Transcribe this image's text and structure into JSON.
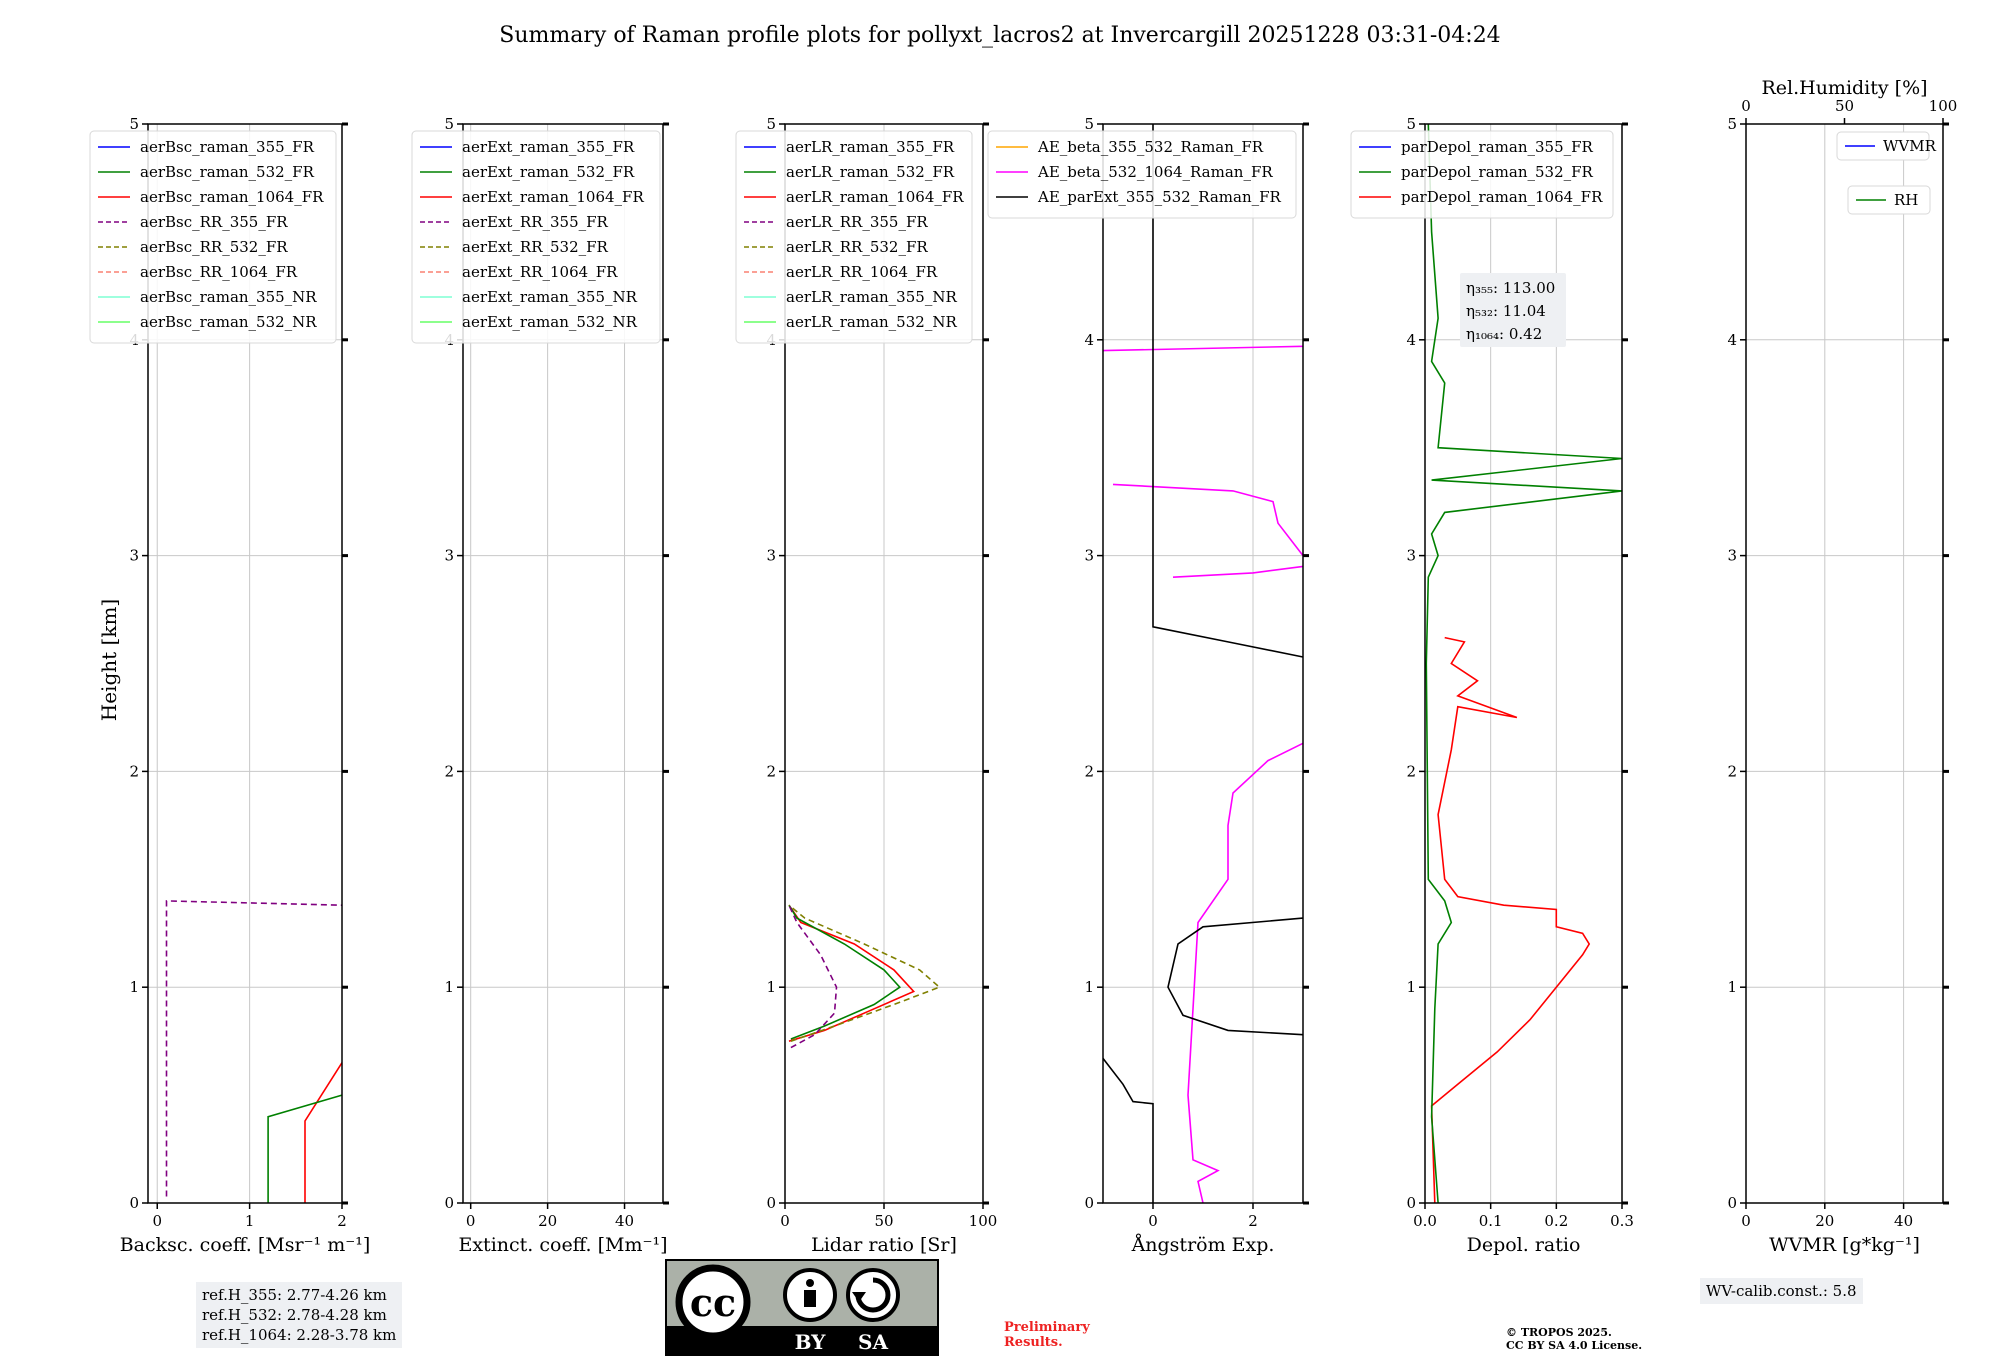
{
  "title": "Summary of Raman profile plots for pollyxt_lacros2 at Invercargill 20251228 03:31-04:24",
  "height_label": "Height [km]",
  "colors": {
    "c355": "#0000ff",
    "c532": "#008000",
    "c1064": "#ff0000",
    "rr355": "#800080",
    "rr532": "#808000",
    "rr1064": "#fa8072",
    "nr355": "#7fffd4",
    "nr532": "#66ff66",
    "ae1": "#ffa500",
    "ae2": "#ff00ff",
    "ae3": "#000000"
  },
  "chart_data": [
    {
      "type": "line",
      "id": "bsc",
      "xlabel": "Backsc. coeff. [Msr⁻¹ m⁻¹]",
      "xlim": [
        -0.1,
        2
      ],
      "ylim": [
        0,
        5
      ],
      "xticks": [
        "0",
        "1",
        "2"
      ],
      "xtick_values": [
        0,
        1,
        2
      ],
      "yticks": [
        "0",
        "1",
        "2",
        "3",
        "4",
        "5"
      ],
      "legend": [
        "aerBsc_raman_355_FR",
        "aerBsc_raman_532_FR",
        "aerBsc_raman_1064_FR",
        "aerBsc_RR_355_FR",
        "aerBsc_RR_532_FR",
        "aerBsc_RR_1064_FR",
        "aerBsc_raman_355_NR",
        "aerBsc_raman_532_NR"
      ],
      "series": [
        {
          "name": "aerBsc_RR_355_FR",
          "color": "rr355",
          "dash": true,
          "points": [
            [
              0.1,
              0.03
            ],
            [
              0.1,
              1.4
            ],
            [
              2,
              1.38
            ]
          ]
        },
        {
          "name": "aerBsc_raman_1064_FR",
          "color": "c1064",
          "points": [
            [
              1.6,
              0
            ],
            [
              1.6,
              0.38
            ],
            [
              2,
              0.65
            ]
          ]
        },
        {
          "name": "aerBsc_raman_532_FR",
          "color": "c532",
          "points": [
            [
              1.2,
              0
            ],
            [
              1.2,
              0.4
            ],
            [
              2,
              0.5
            ]
          ]
        }
      ]
    },
    {
      "type": "line",
      "id": "ext",
      "xlabel": "Extinct. coeff. [Mm⁻¹]",
      "xlim": [
        -2,
        50
      ],
      "ylim": [
        0,
        5
      ],
      "xticks": [
        "0",
        "20",
        "40"
      ],
      "xtick_values": [
        0,
        20,
        40
      ],
      "yticks": [
        "0",
        "1",
        "2",
        "3",
        "4",
        "5"
      ],
      "legend": [
        "aerExt_raman_355_FR",
        "aerExt_raman_532_FR",
        "aerExt_raman_1064_FR",
        "aerExt_RR_355_FR",
        "aerExt_RR_532_FR",
        "aerExt_RR_1064_FR",
        "aerExt_raman_355_NR",
        "aerExt_raman_532_NR"
      ],
      "series": []
    },
    {
      "type": "line",
      "id": "lr",
      "xlabel": "Lidar ratio [Sr]",
      "xlim": [
        0,
        100
      ],
      "ylim": [
        0,
        5
      ],
      "xticks": [
        "0",
        "50",
        "100"
      ],
      "xtick_values": [
        0,
        50,
        100
      ],
      "yticks": [
        "0",
        "1",
        "2",
        "3",
        "4",
        "5"
      ],
      "legend": [
        "aerLR_raman_355_FR",
        "aerLR_raman_532_FR",
        "aerLR_raman_1064_FR",
        "aerLR_RR_355_FR",
        "aerLR_RR_532_FR",
        "aerLR_RR_1064_FR",
        "aerLR_raman_355_NR",
        "aerLR_raman_532_NR"
      ],
      "series": [
        {
          "name": "aerLR_raman_1064_FR",
          "color": "c1064",
          "points": [
            [
              2,
              0.75
            ],
            [
              20,
              0.8
            ],
            [
              45,
              0.9
            ],
            [
              65,
              0.98
            ],
            [
              55,
              1.08
            ],
            [
              35,
              1.2
            ],
            [
              8,
              1.3
            ],
            [
              2,
              1.38
            ]
          ]
        },
        {
          "name": "aerLR_raman_532_FR",
          "color": "c532",
          "points": [
            [
              3,
              0.76
            ],
            [
              20,
              0.82
            ],
            [
              45,
              0.92
            ],
            [
              58,
              1.0
            ],
            [
              50,
              1.08
            ],
            [
              30,
              1.2
            ],
            [
              6,
              1.32
            ],
            [
              2,
              1.38
            ]
          ]
        },
        {
          "name": "aerLR_RR_532_FR",
          "color": "rr532",
          "dash": true,
          "points": [
            [
              3,
              0.75
            ],
            [
              25,
              0.82
            ],
            [
              55,
              0.92
            ],
            [
              78,
              1.0
            ],
            [
              68,
              1.08
            ],
            [
              40,
              1.2
            ],
            [
              10,
              1.32
            ],
            [
              2,
              1.38
            ]
          ]
        },
        {
          "name": "aerLR_RR_355_FR",
          "color": "rr355",
          "dash": true,
          "points": [
            [
              3,
              0.72
            ],
            [
              15,
              0.78
            ],
            [
              25,
              0.88
            ],
            [
              26,
              1.0
            ],
            [
              18,
              1.15
            ],
            [
              6,
              1.3
            ],
            [
              2,
              1.38
            ]
          ]
        }
      ]
    },
    {
      "type": "line",
      "id": "ae",
      "xlabel": "Ångström Exp.",
      "xlim": [
        -1,
        3
      ],
      "ylim": [
        0,
        5
      ],
      "xticks": [
        "0",
        "2"
      ],
      "xtick_values": [
        0,
        2
      ],
      "yticks": [
        "0",
        "1",
        "2",
        "3",
        "4",
        "5"
      ],
      "legend": [
        "AE_beta_355_532_Raman_FR",
        "AE_beta_532_1064_Raman_FR",
        "AE_parExt_355_532_Raman_FR"
      ],
      "series": [
        {
          "name": "AE_beta_532_1064_Raman_FR",
          "color": "ae2",
          "points": [
            [
              1.0,
              0
            ],
            [
              0.9,
              0.1
            ],
            [
              1.3,
              0.15
            ],
            [
              0.8,
              0.2
            ],
            [
              0.7,
              0.5
            ],
            [
              0.8,
              0.9
            ],
            [
              0.9,
              1.3
            ],
            [
              1.5,
              1.5
            ],
            [
              1.5,
              1.75
            ],
            [
              1.6,
              1.9
            ],
            [
              2.3,
              2.05
            ],
            [
              3,
              2.13
            ]
          ]
        },
        {
          "name": "AE_beta_532_1064_Raman_FR",
          "color": "ae2",
          "points": [
            [
              0.4,
              2.9
            ],
            [
              2.0,
              2.92
            ],
            [
              3,
              2.95
            ]
          ]
        },
        {
          "name": "AE_beta_532_1064_Raman_FR",
          "color": "ae2",
          "points": [
            [
              -0.8,
              3.33
            ],
            [
              1.6,
              3.3
            ],
            [
              2.4,
              3.25
            ],
            [
              2.5,
              3.15
            ],
            [
              3,
              3.0
            ]
          ]
        },
        {
          "name": "AE_beta_532_1064_Raman_FR",
          "color": "ae2",
          "points": [
            [
              -1,
              3.95
            ],
            [
              3,
              3.97
            ]
          ]
        },
        {
          "name": "AE_parExt_355_532_Raman_FR",
          "color": "ae3",
          "points": [
            [
              -1,
              0.67
            ],
            [
              -0.6,
              0.55
            ],
            [
              -0.4,
              0.47
            ],
            [
              0,
              0.46
            ],
            [
              0,
              0
            ]
          ]
        },
        {
          "name": "AE_parExt_355_532_Raman_FR",
          "color": "ae3",
          "points": [
            [
              3,
              0.78
            ],
            [
              1.5,
              0.8
            ],
            [
              0.6,
              0.87
            ],
            [
              0.3,
              1.0
            ],
            [
              0.5,
              1.2
            ],
            [
              1.0,
              1.28
            ],
            [
              3,
              1.32
            ]
          ]
        },
        {
          "name": "AE_parExt_355_532_Raman_FR",
          "color": "ae3",
          "points": [
            [
              3,
              2.53
            ],
            [
              1.5,
              2.6
            ],
            [
              0,
              2.67
            ],
            [
              0,
              5
            ]
          ]
        }
      ]
    },
    {
      "type": "line",
      "id": "depol",
      "xlabel": "Depol. ratio",
      "xlim": [
        0,
        0.3
      ],
      "ylim": [
        0,
        5
      ],
      "xticks": [
        "0.0",
        "0.1",
        "0.2",
        "0.3"
      ],
      "xtick_values": [
        0,
        0.1,
        0.2,
        0.3
      ],
      "yticks": [
        "0",
        "1",
        "2",
        "3",
        "4",
        "5"
      ],
      "legend": [
        "parDepol_raman_355_FR",
        "parDepol_raman_532_FR",
        "parDepol_raman_1064_FR"
      ],
      "annotation": [
        "η₃₅₅: 113.00",
        "η₅₃₂: 11.04",
        "η₁₀₆₄: 0.42"
      ],
      "series": [
        {
          "name": "parDepol_raman_1064_FR",
          "color": "c1064",
          "points": [
            [
              0.015,
              0
            ],
            [
              0.01,
              0.45
            ],
            [
              0.05,
              0.55
            ],
            [
              0.11,
              0.7
            ],
            [
              0.16,
              0.85
            ],
            [
              0.2,
              1.0
            ],
            [
              0.24,
              1.15
            ],
            [
              0.25,
              1.2
            ],
            [
              0.24,
              1.25
            ],
            [
              0.2,
              1.28
            ],
            [
              0.2,
              1.36
            ],
            [
              0.12,
              1.38
            ],
            [
              0.05,
              1.42
            ],
            [
              0.03,
              1.5
            ],
            [
              0.02,
              1.8
            ],
            [
              0.04,
              2.1
            ],
            [
              0.05,
              2.3
            ],
            [
              0.14,
              2.25
            ],
            [
              0.05,
              2.35
            ],
            [
              0.08,
              2.42
            ],
            [
              0.04,
              2.5
            ],
            [
              0.06,
              2.6
            ],
            [
              0.03,
              2.62
            ]
          ]
        },
        {
          "name": "parDepol_raman_532_FR",
          "color": "c532",
          "points": [
            [
              0.02,
              0
            ],
            [
              0.01,
              0.4
            ],
            [
              0.015,
              0.9
            ],
            [
              0.02,
              1.2
            ],
            [
              0.04,
              1.3
            ],
            [
              0.03,
              1.4
            ],
            [
              0.005,
              1.5
            ],
            [
              0.002,
              2.5
            ],
            [
              0.005,
              2.9
            ],
            [
              0.02,
              3.0
            ],
            [
              0.01,
              3.1
            ],
            [
              0.03,
              3.2
            ],
            [
              0.3,
              3.3
            ],
            [
              0.01,
              3.35
            ],
            [
              0.3,
              3.45
            ],
            [
              0.02,
              3.5
            ],
            [
              0.03,
              3.8
            ],
            [
              0.01,
              3.9
            ],
            [
              0.02,
              4.1
            ],
            [
              0.01,
              4.5
            ],
            [
              0.005,
              5
            ]
          ]
        }
      ]
    },
    {
      "type": "line",
      "id": "wv",
      "xlabel": "WVMR [g*kg⁻¹]",
      "top_label": "Rel.Humidity [%]",
      "top_ticks": [
        "0",
        "50",
        "100"
      ],
      "xlim": [
        0,
        50
      ],
      "ylim": [
        0,
        5
      ],
      "xticks": [
        "0",
        "20",
        "40"
      ],
      "xtick_values": [
        0,
        20,
        40
      ],
      "yticks": [
        "0",
        "1",
        "2",
        "3",
        "4",
        "5"
      ],
      "legend": [
        "WVMR",
        "RH"
      ],
      "series": []
    }
  ],
  "footer": {
    "ref": [
      "ref.H_355: 2.77-4.26 km",
      "ref.H_532: 2.78-4.28 km",
      "ref.H_1064: 2.28-3.78 km"
    ],
    "license_cc": "cc",
    "license_by": "BY",
    "license_sa": "SA",
    "preliminary": [
      "Preliminary",
      "Results."
    ],
    "copyright": [
      "© TROPOS 2025.",
      "CC BY SA 4.0 License."
    ],
    "wv_calib": "WV-calib.const.: 5.8"
  }
}
